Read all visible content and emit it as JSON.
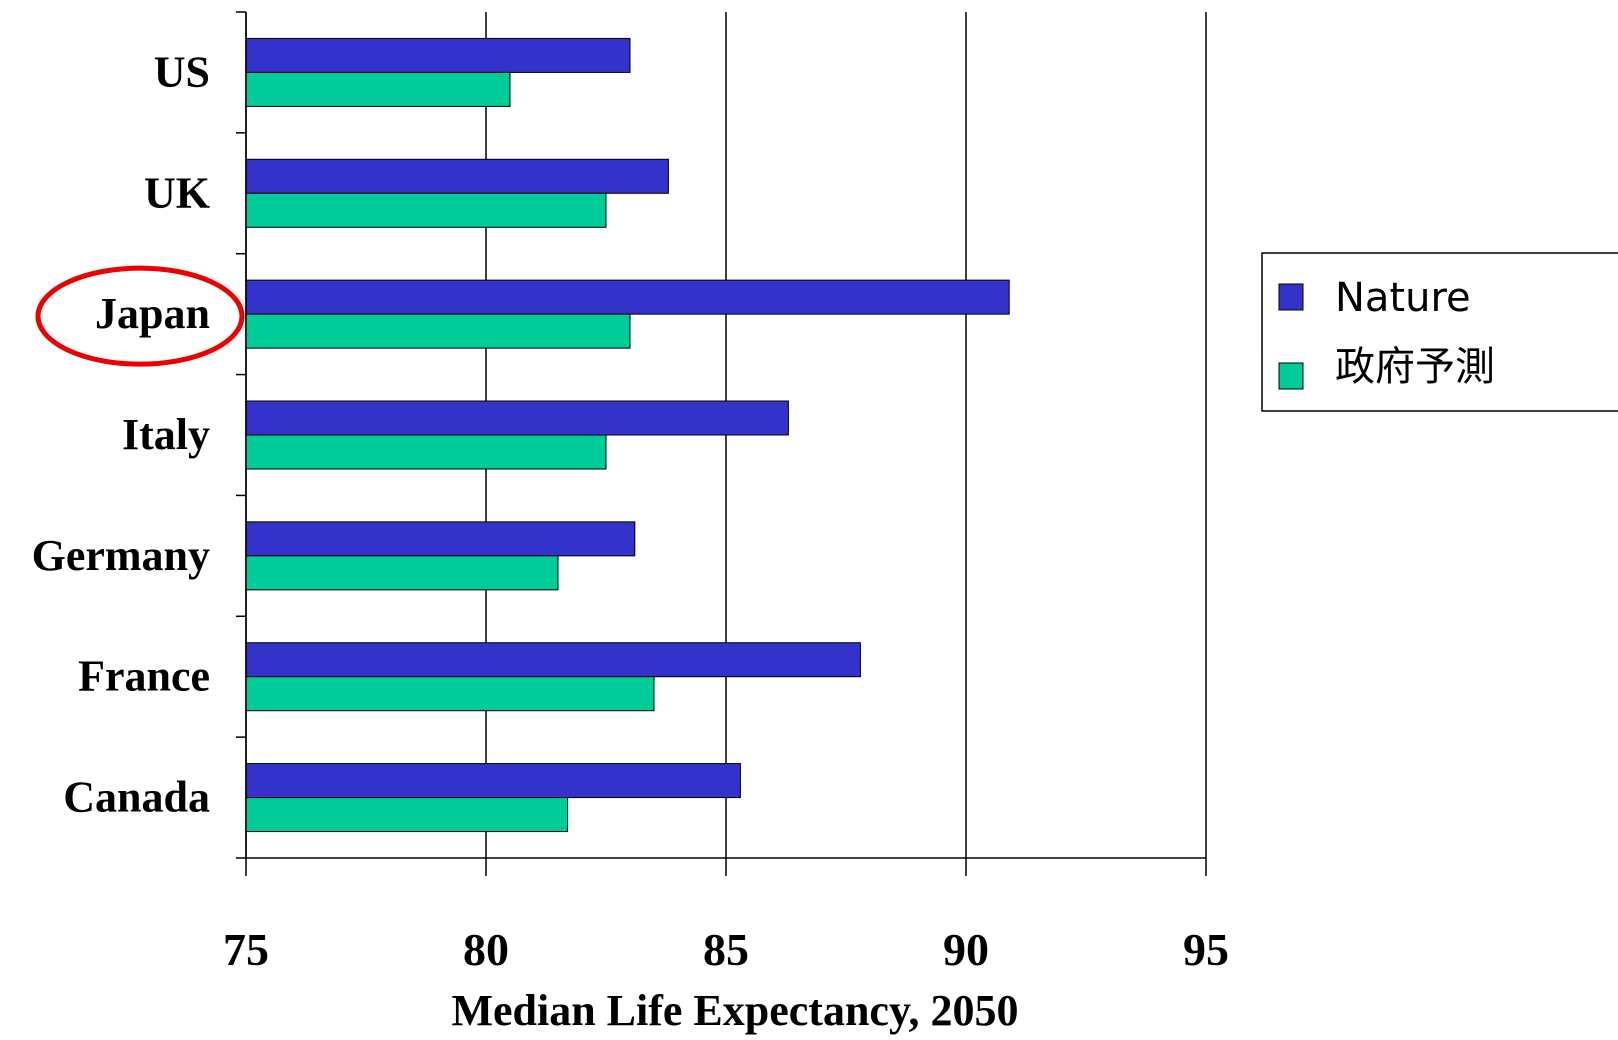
{
  "chart_data": {
    "type": "bar",
    "orientation": "horizontal",
    "categories": [
      "US",
      "UK",
      "Japan",
      "Italy",
      "Germany",
      "France",
      "Canada"
    ],
    "series": [
      {
        "name": "Nature",
        "color": "#3333cc",
        "values": [
          83.0,
          83.8,
          90.9,
          86.3,
          83.1,
          87.8,
          85.3
        ]
      },
      {
        "name": "政府予測",
        "color": "#00cc99",
        "values": [
          80.5,
          82.5,
          83.0,
          82.5,
          81.5,
          83.5,
          81.7
        ]
      }
    ],
    "xlabel": "Median Life Expectancy, 2050",
    "xlim": [
      75,
      95
    ],
    "xticks": [
      75,
      80,
      85,
      90,
      95
    ],
    "grid": "vertical",
    "legend": "right",
    "highlight": {
      "category": "Japan",
      "shape": "ellipse",
      "color": "#ee0000"
    }
  }
}
